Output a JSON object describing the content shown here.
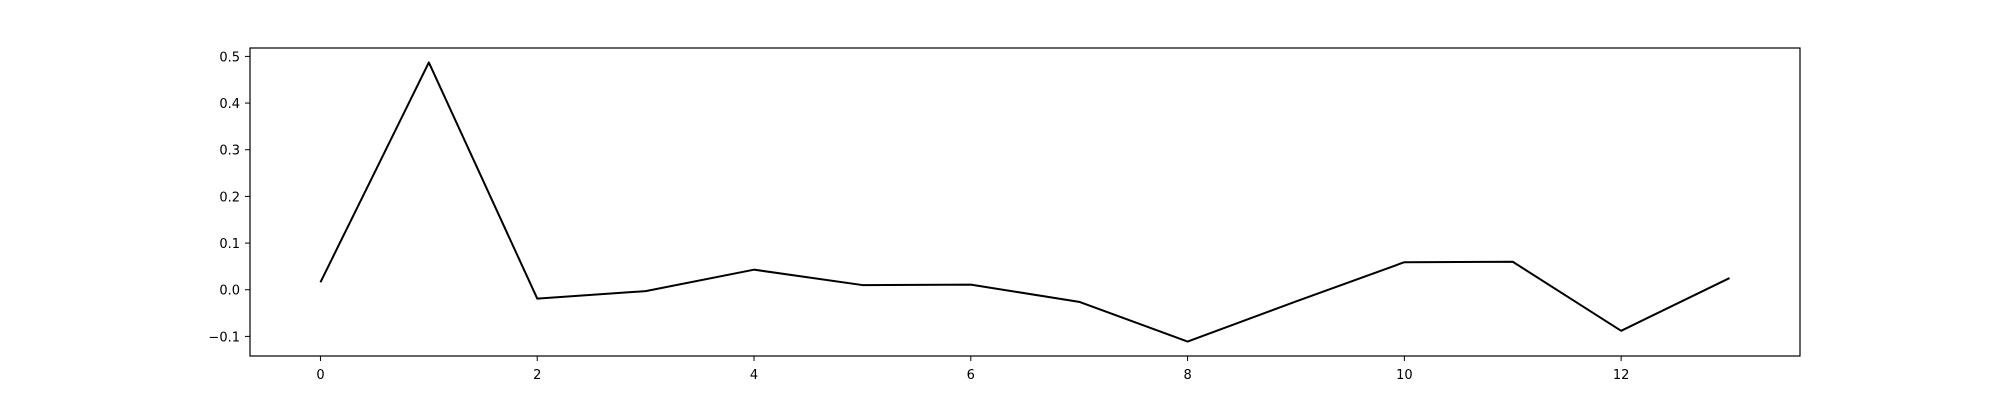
{
  "chart_data": {
    "type": "line",
    "title": "",
    "xlabel": "",
    "ylabel": "",
    "x": [
      0,
      1,
      2,
      3,
      4,
      5,
      6,
      7,
      8,
      9,
      10,
      11,
      12,
      13
    ],
    "series": [
      {
        "values": [
          0.016,
          0.487,
          -0.019,
          -0.003,
          0.043,
          0.01,
          0.011,
          -0.026,
          -0.111,
          -0.025,
          0.059,
          0.06,
          -0.088,
          0.025
        ],
        "color": "#000000"
      }
    ],
    "xlim": [
      -0.65,
      13.65
    ],
    "ylim": [
      -0.142,
      0.518
    ],
    "xticks": [
      0,
      2,
      4,
      6,
      8,
      10,
      12
    ],
    "xtick_labels": [
      "0",
      "2",
      "4",
      "6",
      "8",
      "10",
      "12"
    ],
    "yticks": [
      -0.1,
      0.0,
      0.1,
      0.2,
      0.3,
      0.4,
      0.5
    ],
    "ytick_labels": [
      "−0.1",
      "0.0",
      "0.1",
      "0.2",
      "0.3",
      "0.4",
      "0.5"
    ],
    "grid": false,
    "legend": false
  }
}
